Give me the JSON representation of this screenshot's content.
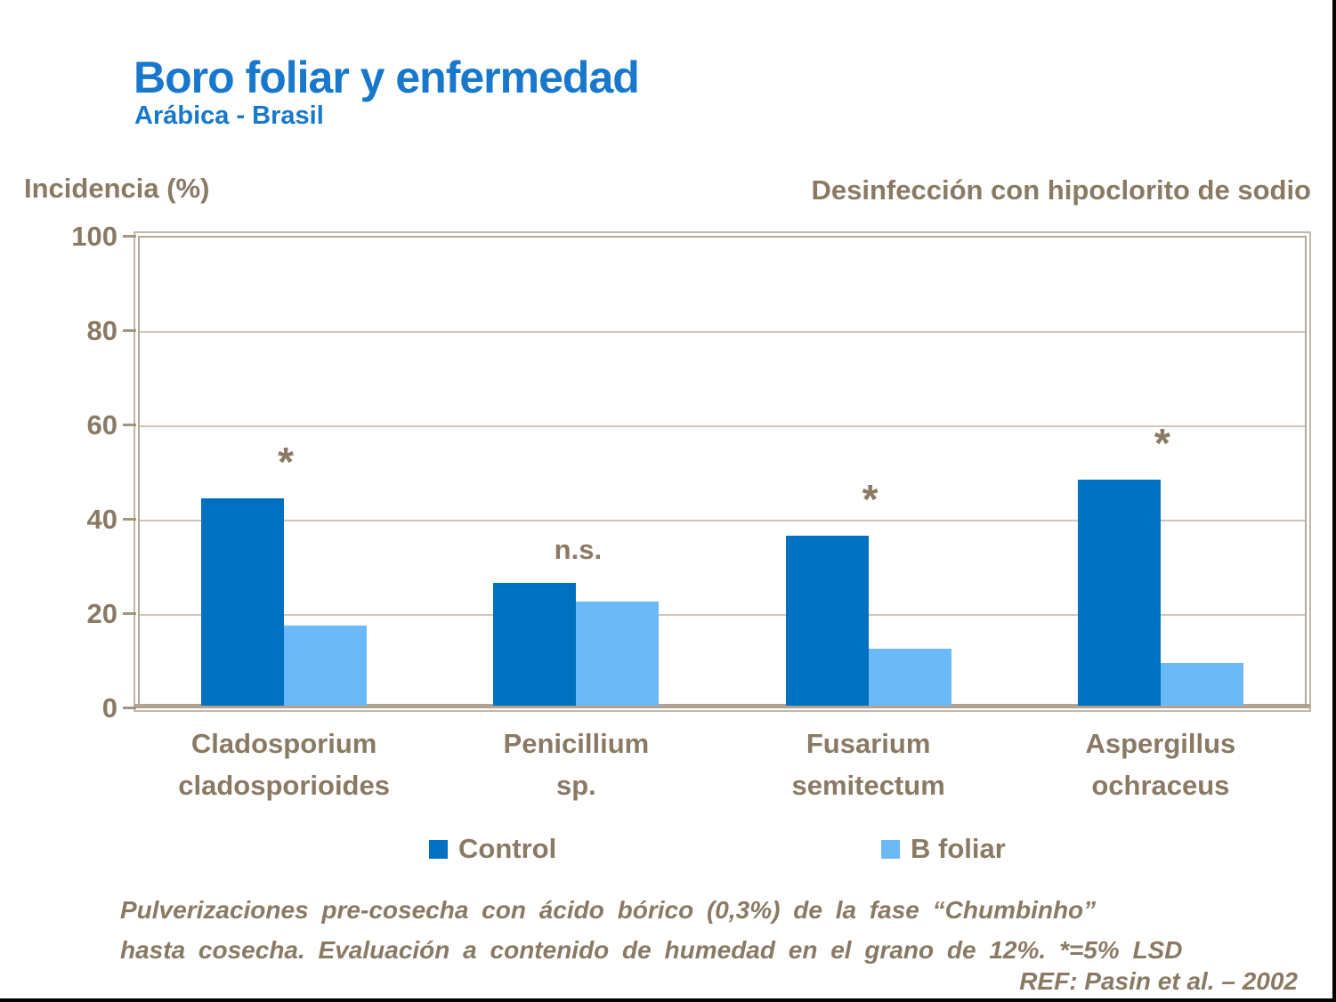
{
  "slide": {
    "title": "Boro foliar y enfermedad",
    "subtitle": "Arábica - Brasil",
    "y_axis_title": "Incidencia (%)",
    "right_header": "Desinfección con hipoclorito de sodio",
    "footnote_line1": "Pulverizaciones pre-cosecha con ácido bórico (0,3%) de la fase “Chumbinho”",
    "footnote_line2": "hasta cosecha. Evaluación a contenido de humedad en el grano de 12%. *=5% LSD",
    "reference": "REF: Pasin et al. – 2002"
  },
  "colors": {
    "title_blue": "#1778CC",
    "text_brown": "#8A7A64",
    "control_bar": "#0070C0",
    "bfoliar_bar": "#6CB9F7",
    "gridline": "#cfc5b5",
    "plot_frame": "#b6a898",
    "baseline": "#b1a393"
  },
  "chart_data": {
    "type": "bar",
    "title": "Boro foliar y enfermedad — Arábica - Brasil",
    "ylabel": "Incidencia (%)",
    "annotation_header": "Desinfección con hipoclorito de sodio",
    "categories": [
      "Cladosporium cladosporioides",
      "Penicillium sp.",
      "Fusarium semitectum",
      "Aspergillus ochraceus"
    ],
    "category_label_lines": [
      [
        "Cladosporium",
        "cladosporioides"
      ],
      [
        "Penicillium",
        "sp."
      ],
      [
        "Fusarium",
        "semitectum"
      ],
      [
        "Aspergillus",
        "ochraceus"
      ]
    ],
    "series": [
      {
        "name": "Control",
        "color": "#0070C0",
        "values": [
          44,
          26,
          36,
          48
        ]
      },
      {
        "name": "B foliar",
        "color": "#6CB9F7",
        "values": [
          17,
          22,
          12,
          9
        ]
      }
    ],
    "significance": [
      "*",
      "n.s.",
      "*",
      "*"
    ],
    "ylim": [
      0,
      100
    ],
    "yticks": [
      0,
      20,
      40,
      60,
      80,
      100
    ],
    "grid": true,
    "legend_position": "bottom"
  }
}
